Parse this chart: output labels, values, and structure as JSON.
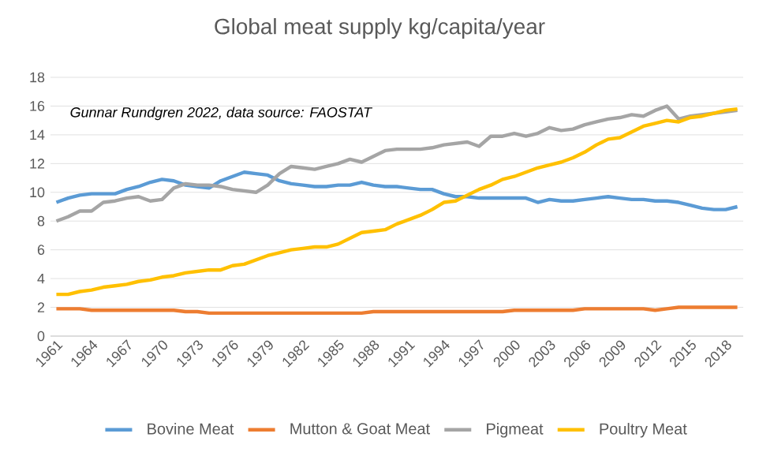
{
  "chart_data": {
    "type": "line",
    "title": "Global meat supply kg/capita/year",
    "annotations": [
      "Gunnar Rundgren 2022, data source: FAOSTAT"
    ],
    "x": [
      1961,
      1962,
      1963,
      1964,
      1965,
      1966,
      1967,
      1968,
      1969,
      1970,
      1971,
      1972,
      1973,
      1974,
      1975,
      1976,
      1977,
      1978,
      1979,
      1980,
      1981,
      1982,
      1983,
      1984,
      1985,
      1986,
      1987,
      1988,
      1989,
      1990,
      1991,
      1992,
      1993,
      1994,
      1995,
      1996,
      1997,
      1998,
      1999,
      2000,
      2001,
      2002,
      2003,
      2004,
      2005,
      2006,
      2007,
      2008,
      2009,
      2010,
      2011,
      2012,
      2013,
      2014,
      2015,
      2016,
      2017,
      2018,
      2019
    ],
    "series": [
      {
        "name": "Bovine Meat",
        "color": "#5b9bd5",
        "values": [
          9.3,
          9.6,
          9.8,
          9.9,
          9.9,
          9.9,
          10.2,
          10.4,
          10.7,
          10.9,
          10.8,
          10.5,
          10.4,
          10.3,
          10.8,
          11.1,
          11.4,
          11.3,
          11.2,
          10.8,
          10.6,
          10.5,
          10.4,
          10.4,
          10.5,
          10.5,
          10.7,
          10.5,
          10.4,
          10.4,
          10.3,
          10.2,
          10.2,
          9.9,
          9.7,
          9.7,
          9.6,
          9.6,
          9.6,
          9.6,
          9.6,
          9.3,
          9.5,
          9.4,
          9.4,
          9.5,
          9.6,
          9.7,
          9.6,
          9.5,
          9.5,
          9.4,
          9.4,
          9.3,
          9.1,
          8.9,
          8.8,
          8.8,
          9.0
        ]
      },
      {
        "name": "Mutton & Goat Meat",
        "color": "#ed7d31",
        "values": [
          1.9,
          1.9,
          1.9,
          1.8,
          1.8,
          1.8,
          1.8,
          1.8,
          1.8,
          1.8,
          1.8,
          1.7,
          1.7,
          1.6,
          1.6,
          1.6,
          1.6,
          1.6,
          1.6,
          1.6,
          1.6,
          1.6,
          1.6,
          1.6,
          1.6,
          1.6,
          1.6,
          1.7,
          1.7,
          1.7,
          1.7,
          1.7,
          1.7,
          1.7,
          1.7,
          1.7,
          1.7,
          1.7,
          1.7,
          1.8,
          1.8,
          1.8,
          1.8,
          1.8,
          1.8,
          1.9,
          1.9,
          1.9,
          1.9,
          1.9,
          1.9,
          1.8,
          1.9,
          2.0,
          2.0,
          2.0,
          2.0,
          2.0,
          2.0
        ]
      },
      {
        "name": "Pigmeat",
        "color": "#a5a5a5",
        "values": [
          8.0,
          8.3,
          8.7,
          8.7,
          9.3,
          9.4,
          9.6,
          9.7,
          9.4,
          9.5,
          10.3,
          10.6,
          10.5,
          10.5,
          10.4,
          10.2,
          10.1,
          10.0,
          10.5,
          11.3,
          11.8,
          11.7,
          11.6,
          11.8,
          12.0,
          12.3,
          12.1,
          12.5,
          12.9,
          13.0,
          13.0,
          13.0,
          13.1,
          13.3,
          13.4,
          13.5,
          13.2,
          13.9,
          13.9,
          14.1,
          13.9,
          14.1,
          14.5,
          14.3,
          14.4,
          14.7,
          14.9,
          15.1,
          15.2,
          15.4,
          15.3,
          15.7,
          16.0,
          15.1,
          15.3,
          15.4,
          15.5,
          15.6,
          15.7
        ]
      },
      {
        "name": "Poultry Meat",
        "color": "#ffc000",
        "values": [
          2.9,
          2.9,
          3.1,
          3.2,
          3.4,
          3.5,
          3.6,
          3.8,
          3.9,
          4.1,
          4.2,
          4.4,
          4.5,
          4.6,
          4.6,
          4.9,
          5.0,
          5.3,
          5.6,
          5.8,
          6.0,
          6.1,
          6.2,
          6.2,
          6.4,
          6.8,
          7.2,
          7.3,
          7.4,
          7.8,
          8.1,
          8.4,
          8.8,
          9.3,
          9.4,
          9.8,
          10.2,
          10.5,
          10.9,
          11.1,
          11.4,
          11.7,
          11.9,
          12.1,
          12.4,
          12.8,
          13.3,
          13.7,
          13.8,
          14.2,
          14.6,
          14.8,
          15.0,
          14.9,
          15.2,
          15.3,
          15.5,
          15.7,
          15.8
        ]
      }
    ],
    "xlim": [
      1960.5,
      2019.5
    ],
    "xticks": [
      1961,
      1964,
      1967,
      1970,
      1973,
      1976,
      1979,
      1982,
      1985,
      1988,
      1991,
      1994,
      1997,
      2000,
      2003,
      2006,
      2009,
      2012,
      2015,
      2018
    ],
    "ylim": [
      0,
      18
    ],
    "yticks": [
      0,
      2,
      4,
      6,
      8,
      10,
      12,
      14,
      16,
      18
    ],
    "grid": "y",
    "legend": "bottom",
    "marker": "none",
    "line_style": "solid"
  }
}
